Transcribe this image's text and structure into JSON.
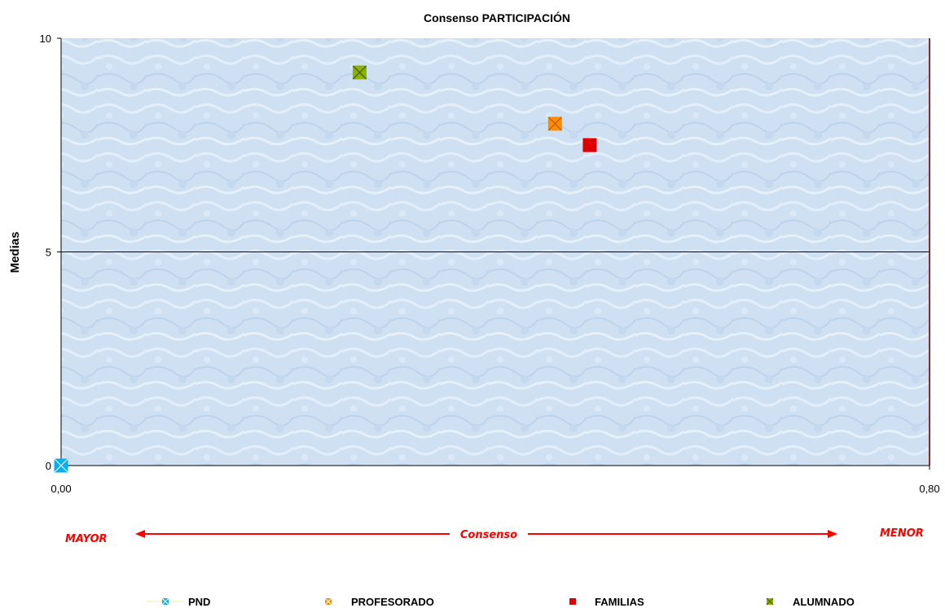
{
  "chart_data": {
    "type": "scatter",
    "title": "Consenso PARTICIPACIÓN",
    "ylabel": "Medias",
    "xlabel": "",
    "xlim": [
      0,
      0.8
    ],
    "ylim": [
      0,
      10
    ],
    "x_ticks": [
      "0,00",
      "0,80"
    ],
    "y_ticks": [
      "0",
      "5",
      "10"
    ],
    "reference_line_y": 5,
    "grid": false,
    "background": "light-blue-texture",
    "series": [
      {
        "name": "PND",
        "x": 0.0,
        "y": 0.0,
        "color": "#00B0F0",
        "marker": "x-square"
      },
      {
        "name": "PROFESORADO",
        "x": 0.455,
        "y": 8.0,
        "color": "#FF8C00",
        "marker": "x-square"
      },
      {
        "name": "FAMILIAS",
        "x": 0.487,
        "y": 7.5,
        "color": "#E00000",
        "marker": "square"
      },
      {
        "name": "ALUMNADO",
        "x": 0.275,
        "y": 9.2,
        "color": "#8DB200",
        "marker": "x-square"
      }
    ],
    "annotations": {
      "left": "MAYOR",
      "center": "Consenso",
      "right": "MENOR",
      "color": "#FF0000"
    },
    "legend": {
      "placement": "bottom",
      "entries": [
        "PND",
        "PROFESORADO",
        "FAMILIAS",
        "ALUMNADO"
      ]
    }
  }
}
